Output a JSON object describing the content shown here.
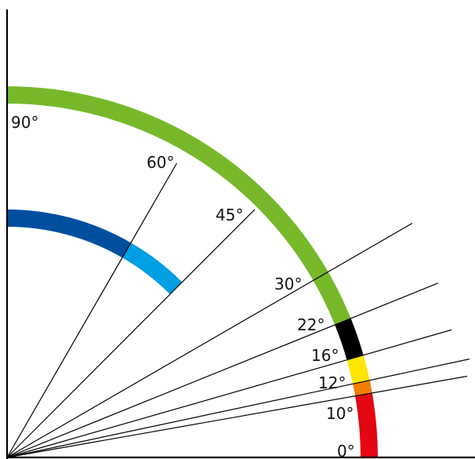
{
  "diagram": {
    "colors": {
      "axis": "#000000",
      "ray": "#000000",
      "outer_green": "#76b82a",
      "outer_black": "#000000",
      "outer_yellow": "#ffe600",
      "outer_orange": "#f07d00",
      "outer_red": "#e30613",
      "inner_dark_blue": "#004f9f",
      "inner_light_blue": "#009ee3"
    },
    "outer_arc_segments": [
      {
        "name": "outer-arc-green",
        "from_deg": 22,
        "to_deg": 90,
        "color_key": "outer_green"
      },
      {
        "name": "outer-arc-black",
        "from_deg": 16,
        "to_deg": 22,
        "color_key": "outer_black"
      },
      {
        "name": "outer-arc-yellow",
        "from_deg": 12,
        "to_deg": 16,
        "color_key": "outer_yellow"
      },
      {
        "name": "outer-arc-orange",
        "from_deg": 10,
        "to_deg": 12,
        "color_key": "outer_orange"
      },
      {
        "name": "outer-arc-red",
        "from_deg": 0,
        "to_deg": 10,
        "color_key": "outer_red"
      }
    ],
    "inner_arc_segments": [
      {
        "name": "inner-arc-dark-blue",
        "from_deg": 60,
        "to_deg": 90,
        "color_key": "inner_dark_blue"
      },
      {
        "name": "inner-arc-light-blue",
        "from_deg": 45,
        "to_deg": 60,
        "color_key": "inner_light_blue"
      }
    ],
    "rays_deg": [
      60,
      45,
      30,
      22,
      16,
      12,
      10
    ],
    "labels": [
      {
        "deg": 90,
        "text": "90°"
      },
      {
        "deg": 60,
        "text": "60°"
      },
      {
        "deg": 45,
        "text": "45°"
      },
      {
        "deg": 30,
        "text": "30°"
      },
      {
        "deg": 22,
        "text": "22°"
      },
      {
        "deg": 16,
        "text": "16°"
      },
      {
        "deg": 12,
        "text": "12°"
      },
      {
        "deg": 10,
        "text": "10°"
      },
      {
        "deg": 0,
        "text": "0°"
      }
    ]
  }
}
